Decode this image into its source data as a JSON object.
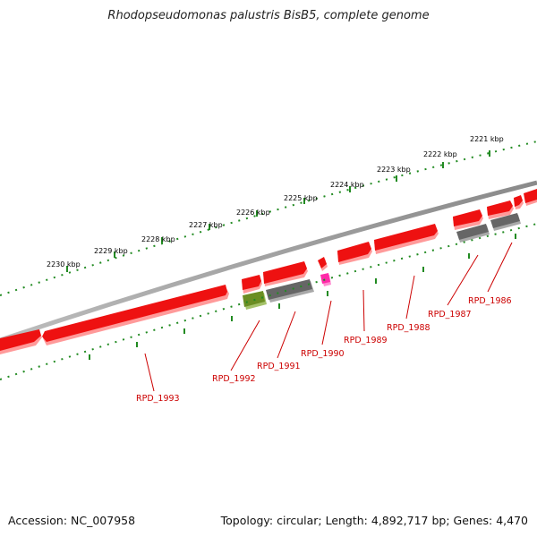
{
  "title": "Rhodopseudomonas palustris BisB5, complete genome",
  "footer": {
    "accession": "Accession: NC_007958",
    "summary": "Topology: circular; Length: 4,892,717 bp; Genes: 4,470"
  },
  "colors": {
    "forward_gene": "#ee1111",
    "forward_gene_shadow": "#ff9999",
    "other_gray": "#666666",
    "other_green": "#6b8e23",
    "other_magenta": "#ff2aa8",
    "backbone": "#808080",
    "ruler_ticks": "#228b22",
    "label_text": "#cc0000"
  },
  "ruler": {
    "outer_labels": [
      "2230 kbp",
      "2229 kbp",
      "2228 kbp",
      "2227 kbp",
      "2226 kbp",
      "2225 kbp",
      "2224 kbp",
      "2223 kbp",
      "2222 kbp",
      "2221 kbp"
    ]
  },
  "gene_labels": [
    "RPD_1993",
    "RPD_1992",
    "RPD_1991",
    "RPD_1990",
    "RPD_1989",
    "RPD_1988",
    "RPD_1987",
    "RPD_1986"
  ]
}
